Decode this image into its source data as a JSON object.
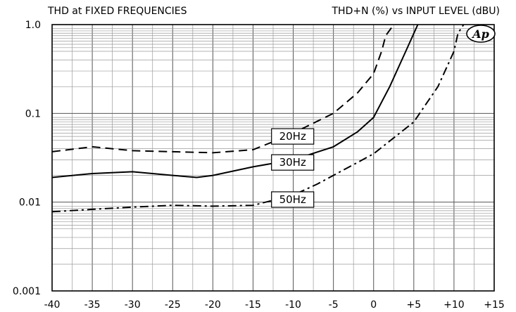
{
  "chart_data": {
    "type": "line",
    "title": "THD at FIXED FREQUENCIES",
    "subtitle": "THD+N (%) vs INPUT LEVEL (dBU)",
    "xlabel": "",
    "ylabel": "",
    "xlim": [
      -40,
      15
    ],
    "ylim": [
      0.001,
      1.0
    ],
    "y_scale": "log",
    "grid": true,
    "x_ticks": [
      -40,
      -35,
      -30,
      -25,
      -20,
      -15,
      -10,
      -5,
      0,
      5,
      10,
      15
    ],
    "x_tick_labels": [
      "-40",
      "-35",
      "-30",
      "-25",
      "-20",
      "-15",
      "-10",
      "-5",
      "0",
      "+5",
      "+10",
      "+15"
    ],
    "y_ticks": [
      0.001,
      0.01,
      0.1,
      1.0
    ],
    "y_tick_labels": [
      "0.001",
      "0.01",
      "0.1",
      "1.0"
    ],
    "logo": "Ap",
    "series": [
      {
        "name": "20Hz",
        "line_style": "dashed",
        "x": [
          -40,
          -35,
          -30,
          -25,
          -20,
          -15,
          -12,
          -10,
          -5,
          -2,
          0,
          1,
          1.5,
          2.5
        ],
        "y": [
          0.037,
          0.042,
          0.038,
          0.037,
          0.036,
          0.039,
          0.05,
          0.06,
          0.1,
          0.17,
          0.28,
          0.5,
          0.75,
          1.0
        ],
        "label_at": [
          -12,
          0.055
        ]
      },
      {
        "name": "30Hz",
        "line_style": "solid",
        "x": [
          -40,
          -35,
          -30,
          -25,
          -22,
          -20,
          -15,
          -10,
          -5,
          -2,
          0,
          2,
          4,
          5.5
        ],
        "y": [
          0.019,
          0.021,
          0.022,
          0.02,
          0.019,
          0.02,
          0.025,
          0.03,
          0.042,
          0.062,
          0.09,
          0.2,
          0.5,
          1.0
        ],
        "label_at": [
          -12,
          0.028
        ]
      },
      {
        "name": "50Hz",
        "line_style": "dash-dot",
        "x": [
          -40,
          -35,
          -30,
          -25,
          -20,
          -15,
          -10,
          -7,
          -5,
          0,
          5,
          8,
          10,
          10.5,
          11.2
        ],
        "y": [
          0.0078,
          0.0083,
          0.0088,
          0.0092,
          0.009,
          0.0092,
          0.012,
          0.016,
          0.02,
          0.035,
          0.08,
          0.2,
          0.5,
          0.8,
          1.0
        ],
        "label_at": [
          -12,
          0.0107
        ]
      }
    ]
  }
}
